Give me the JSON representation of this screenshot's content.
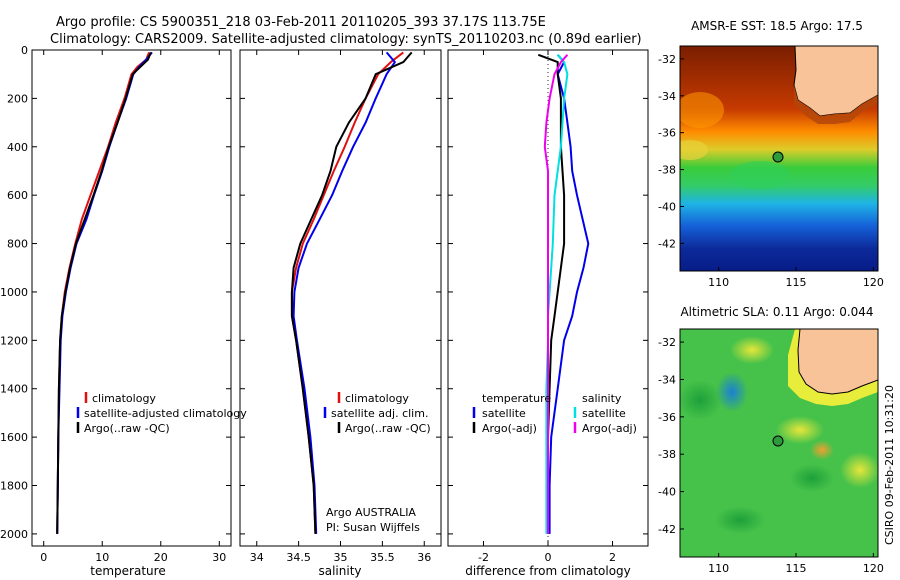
{
  "title": {
    "line1": "Argo profile: CS 5900351_218 03-Feb-2011 20110205_393 37.17S 113.75E",
    "line2": "Climatology: CARS2009. Satellite-adjusted climatology: synTS_20110203.nc (0.89d earlier)"
  },
  "credits": {
    "argo": "Argo AUSTRALIA",
    "pi": "PI: Susan Wijffels",
    "csiro": "CSIRO 09-Feb-2011 10:31:20"
  },
  "colors": {
    "climatology": "#e01010",
    "satellite": "#0000ee",
    "argo": "#000000",
    "cyan": "#00e0e0",
    "magenta": "#ee00ee",
    "land": "#f9c39a"
  },
  "chart_data": [
    {
      "type": "line",
      "xlabel": "temperature",
      "ylabel": "",
      "xlim": [
        -2,
        32
      ],
      "ylim": [
        2050,
        0
      ],
      "xticks": [
        "0",
        "10",
        "20",
        "30"
      ],
      "yticks": [
        "0",
        "200",
        "400",
        "600",
        "800",
        "1000",
        "1200",
        "1400",
        "1600",
        "1800",
        "2000"
      ],
      "legend": {
        "placement": "lower-center",
        "items": [
          {
            "label": "climatology",
            "color": "#e01010"
          },
          {
            "label": "satellite-adjusted climatology",
            "color": "#0000ee"
          },
          {
            "label": "Argo(..raw -QC)",
            "color": "#000000"
          }
        ]
      },
      "series": [
        {
          "color": "#e01010",
          "x": [
            18.0,
            17.5,
            16.0,
            15.0,
            13.8,
            12.3,
            11.0,
            9.5,
            8.0,
            6.5,
            5.4,
            4.4,
            3.6,
            3.1,
            2.8,
            2.6,
            2.5,
            2.4,
            2.3
          ],
          "y": [
            10,
            40,
            70,
            100,
            200,
            300,
            400,
            500,
            600,
            700,
            800,
            900,
            1000,
            1100,
            1200,
            1400,
            1600,
            1800,
            2000
          ]
        },
        {
          "color": "#0000ee",
          "x": [
            18.5,
            17.5,
            16.3,
            15.3,
            14.1,
            12.6,
            11.2,
            10.0,
            8.6,
            7.3,
            5.6,
            4.6,
            3.8,
            3.2,
            2.9,
            2.7,
            2.5,
            2.4,
            2.3
          ],
          "y": [
            10,
            40,
            70,
            100,
            200,
            300,
            400,
            500,
            600,
            700,
            800,
            900,
            1000,
            1100,
            1200,
            1400,
            1600,
            1800,
            2000
          ]
        },
        {
          "color": "#000000",
          "x": [
            18.3,
            17.8,
            16.5,
            15.2,
            14.0,
            12.6,
            11.1,
            9.9,
            8.5,
            7.0,
            5.5,
            4.5,
            3.7,
            3.1,
            2.8,
            2.6,
            2.5,
            2.4,
            2.3
          ],
          "y": [
            10,
            40,
            70,
            100,
            200,
            300,
            400,
            500,
            600,
            700,
            800,
            900,
            1000,
            1100,
            1200,
            1400,
            1600,
            1800,
            2000
          ]
        }
      ]
    },
    {
      "type": "line",
      "xlabel": "salinity",
      "xlim": [
        33.8,
        36.2
      ],
      "ylim": [
        2050,
        0
      ],
      "xticks": [
        "34",
        "34.5",
        "35",
        "35.5",
        "36"
      ],
      "legend": {
        "placement": "lower-center",
        "items": [
          {
            "label": "climatology",
            "color": "#e01010"
          },
          {
            "label": "satellite adj. clim.",
            "color": "#0000ee"
          },
          {
            "label": "Argo(..raw -QC)",
            "color": "#000000"
          }
        ]
      },
      "series": [
        {
          "color": "#e01010",
          "x": [
            35.75,
            35.6,
            35.45,
            35.3,
            35.17,
            35.05,
            34.92,
            34.8,
            34.68,
            34.55,
            34.47,
            34.42,
            34.42,
            34.47,
            34.55,
            34.62,
            34.68,
            34.7
          ],
          "y": [
            10,
            50,
            100,
            200,
            300,
            400,
            500,
            600,
            700,
            800,
            900,
            1000,
            1100,
            1200,
            1400,
            1600,
            1800,
            2000
          ]
        },
        {
          "color": "#0000ee",
          "x": [
            35.55,
            35.65,
            35.55,
            35.42,
            35.3,
            35.15,
            35.02,
            34.9,
            34.75,
            34.6,
            34.5,
            34.45,
            34.44,
            34.48,
            34.57,
            34.64,
            34.69,
            34.71
          ],
          "y": [
            10,
            50,
            100,
            200,
            300,
            400,
            500,
            600,
            700,
            800,
            900,
            1000,
            1100,
            1200,
            1400,
            1600,
            1800,
            2000
          ]
        },
        {
          "color": "#000000",
          "x": [
            35.85,
            35.75,
            35.42,
            35.3,
            35.1,
            34.95,
            34.88,
            34.78,
            34.65,
            34.52,
            34.44,
            34.42,
            34.42,
            34.47,
            34.55,
            34.62,
            34.68,
            34.7
          ],
          "y": [
            10,
            50,
            100,
            200,
            300,
            400,
            500,
            600,
            700,
            800,
            900,
            1000,
            1100,
            1200,
            1400,
            1600,
            1800,
            2000
          ]
        }
      ]
    },
    {
      "type": "line",
      "xlabel": "difference from climatology",
      "xlim": [
        -3.1,
        3.1
      ],
      "ylim": [
        2050,
        0
      ],
      "xticks": [
        "-2",
        "0",
        "2"
      ],
      "legend": {
        "placement": "lower-center",
        "columns": [
          {
            "header": "temperature",
            "items": [
              {
                "label": "satellite",
                "color": "#0000ee"
              },
              {
                "label": "Argo(-adj)",
                "color": "#000000"
              }
            ]
          },
          {
            "header": "salinity",
            "items": [
              {
                "label": "satellite",
                "color": "#00e0e0"
              },
              {
                "label": "Argo(-adj)",
                "color": "#ee00ee"
              }
            ]
          }
        ]
      },
      "series": [
        {
          "name": "temperature satellite",
          "color": "#0000ee",
          "x": [
            0.3,
            0.5,
            0.3,
            0.5,
            0.6,
            0.7,
            0.75,
            0.9,
            1.25,
            1.1,
            0.9,
            0.75,
            0.5,
            0.3,
            0.1,
            0.05,
            0.05
          ],
          "y": [
            20,
            50,
            100,
            200,
            300,
            400,
            500,
            600,
            800,
            900,
            1000,
            1100,
            1200,
            1400,
            1600,
            1800,
            2000
          ]
        },
        {
          "name": "temperature Argo(-adj)",
          "color": "#000000",
          "x": [
            -0.3,
            0.3,
            0.3,
            0.4,
            0.4,
            0.4,
            0.45,
            0.5,
            0.5,
            0.4,
            0.3,
            0.2,
            0.1,
            0.05,
            0.0,
            0.0,
            0.0
          ],
          "y": [
            20,
            50,
            100,
            200,
            300,
            400,
            500,
            600,
            800,
            900,
            1000,
            1100,
            1200,
            1400,
            1600,
            1800,
            2000
          ]
        },
        {
          "name": "salinity satellite",
          "color": "#00e0e0",
          "x": [
            0.3,
            0.5,
            0.6,
            0.5,
            0.45,
            0.4,
            0.3,
            0.2,
            0.15,
            0.05,
            0.0,
            0.0,
            -0.05,
            -0.05,
            -0.05,
            -0.05
          ],
          "y": [
            20,
            50,
            100,
            200,
            300,
            400,
            500,
            600,
            800,
            1000,
            1100,
            1200,
            1400,
            1600,
            1800,
            2000
          ]
        },
        {
          "name": "salinity Argo(-adj)",
          "color": "#ee00ee",
          "x": [
            0.6,
            0.4,
            0.2,
            0.05,
            -0.05,
            -0.1,
            0.0,
            0.0,
            0.0,
            0.0,
            0.0,
            0.0
          ],
          "y": [
            20,
            50,
            100,
            200,
            300,
            400,
            500,
            700,
            1000,
            1400,
            1800,
            2000
          ]
        }
      ]
    },
    {
      "type": "heatmap",
      "title": "AMSR-E SST: 18.5 Argo: 17.5",
      "xlim": [
        107.5,
        120.3
      ],
      "ylim": [
        -43.5,
        -31.3
      ],
      "xticks": [
        "110",
        "115",
        "120"
      ],
      "yticks": [
        "-32",
        "-34",
        "-36",
        "-38",
        "-40",
        "-42"
      ],
      "marker": {
        "lon": 113.75,
        "lat": -37.17
      }
    },
    {
      "type": "heatmap",
      "title": "Altimetric SLA: 0.11 Argo: 0.044",
      "xlim": [
        107.5,
        120.3
      ],
      "ylim": [
        -43.5,
        -31.3
      ],
      "xticks": [
        "110",
        "115",
        "120"
      ],
      "yticks": [
        "-32",
        "-34",
        "-36",
        "-38",
        "-40",
        "-42"
      ],
      "marker": {
        "lon": 113.75,
        "lat": -37.17
      }
    }
  ]
}
